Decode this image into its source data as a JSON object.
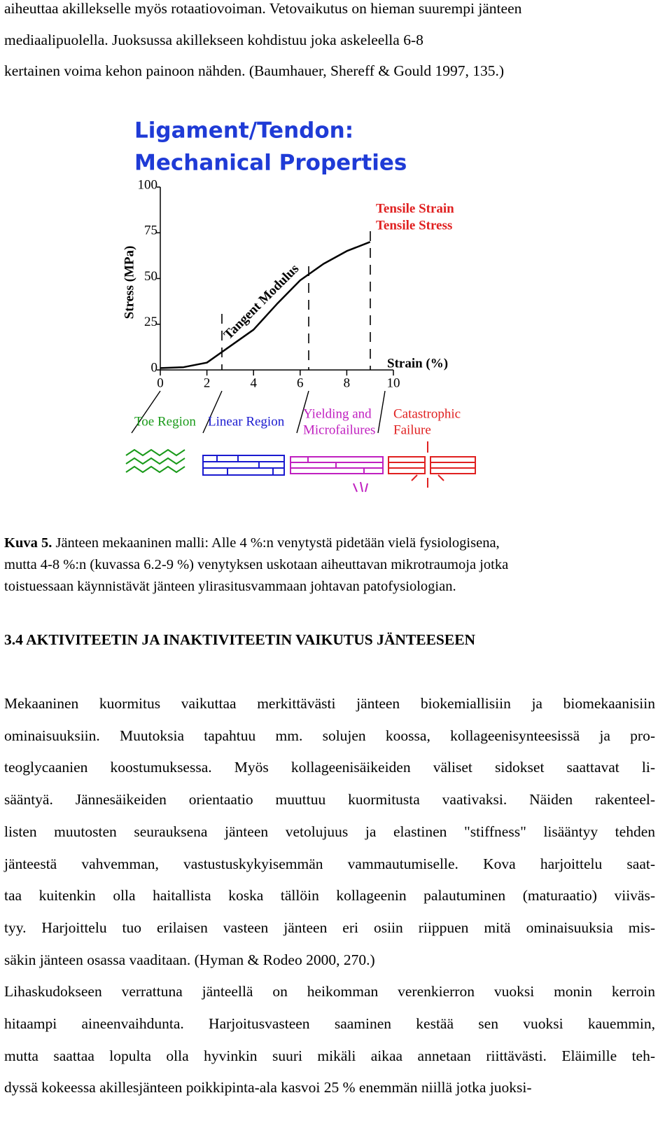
{
  "intro": {
    "lines": [
      "aiheuttaa akillekselle myös rotaatiovoiman. Vetovaikutus on hieman suurempi jänteen",
      "mediaalipuolella. Juoksussa akillekseen kohdistuu joka askeleella 6-8",
      "kertainen voima kehon painoon nähden. (Baumhauer, Shereff & Gould 1997, 135.)"
    ]
  },
  "figure": {
    "chart_data": {
      "type": "line",
      "title": [
        "Ligament/Tendon:",
        "Mechanical Properties"
      ],
      "x_label": "Strain (%)",
      "y_label": "Stress (MPa)",
      "xlim": [
        0,
        10
      ],
      "ylim": [
        0,
        100
      ],
      "xticks": [
        0,
        2,
        4,
        6,
        8,
        10
      ],
      "yticks": [
        0,
        25,
        50,
        75,
        100
      ],
      "x": [
        0,
        1,
        2,
        3,
        4,
        5,
        6,
        7,
        8,
        9
      ],
      "series": [
        {
          "name": "Tangent Modulus",
          "color": "#000000",
          "values": [
            1,
            1.5,
            4,
            13,
            22,
            36,
            49,
            58,
            65,
            70
          ]
        }
      ],
      "annotations": [
        "Tensile Strain",
        "Tensile Stress"
      ],
      "regions": [
        {
          "label": [
            "Toe Region"
          ],
          "color": "#1a9a1a"
        },
        {
          "label": [
            "Linear Region"
          ],
          "color": "#1a1ad0"
        },
        {
          "label": [
            "Yielding and",
            "Microfailures"
          ],
          "color": "#c020c0"
        },
        {
          "label": [
            "Catastrophic",
            "Failure"
          ],
          "color": "#e02020"
        }
      ]
    }
  },
  "caption": {
    "label": "Kuva 5.",
    "lines": [
      " Jänteen mekaaninen malli: Alle 4 %:n venytystä pidetään vielä fysiologisena,",
      "mutta 4-8 %:n (kuvassa 6.2-9 %) venytyksen uskotaan aiheuttavan mikrotraumoja jotka",
      "toistuessaan käynnistävät jänteen ylirasitusvammaan johtavan patofysiologian."
    ]
  },
  "heading": "3.4 AKTIVITEETIN JA INAKTIVITEETIN VAIKUTUS JÄNTEESEEN",
  "paragraphs": [
    [
      "Mekaaninen kuormitus vaikuttaa merkittävästi jänteen biokemiallisiin ja biomekaanisiin",
      "ominaisuuksiin. Muutoksia tapahtuu mm. solujen koossa, kollageenisynteesissä ja pro-",
      "teoglycaanien koostumuksessa. Myös kollageenisäikeiden väliset sidokset saattavat li-",
      "sääntyä. Jännesäikeiden orientaatio muuttuu kuormitusta vaativaksi. Näiden rakenteel-",
      "listen muutosten seurauksena jänteen vetolujuus ja elastinen \"stiffness\" lisääntyy tehden",
      "jänteestä vahvemman, vastustuskykyisemmän vammautumiselle. Kova harjoittelu saat-",
      "taa kuitenkin olla haitallista koska tällöin kollageenin palautuminen (maturaatio) viiväs-",
      "tyy. Harjoittelu tuo erilaisen vasteen jänteen eri osiin riippuen mitä ominaisuuksia mis-",
      "säkin jänteen osassa vaaditaan. (Hyman & Rodeo 2000, 270.)"
    ],
    [
      "Lihaskudokseen verrattuna jänteellä on heikomman verenkierron vuoksi monin kerroin",
      "hitaampi aineenvaihdunta. Harjoitusvasteen saaminen kestää sen vuoksi kauemmin,",
      "mutta saattaa lopulta olla hyvinkin suuri mikäli aikaa annetaan riittävästi. Eläimille teh-",
      "dyssä kokeessa akillesjänteen poikkipinta-ala kasvoi 25 % enemmän niillä jotka juoksi-"
    ]
  ]
}
